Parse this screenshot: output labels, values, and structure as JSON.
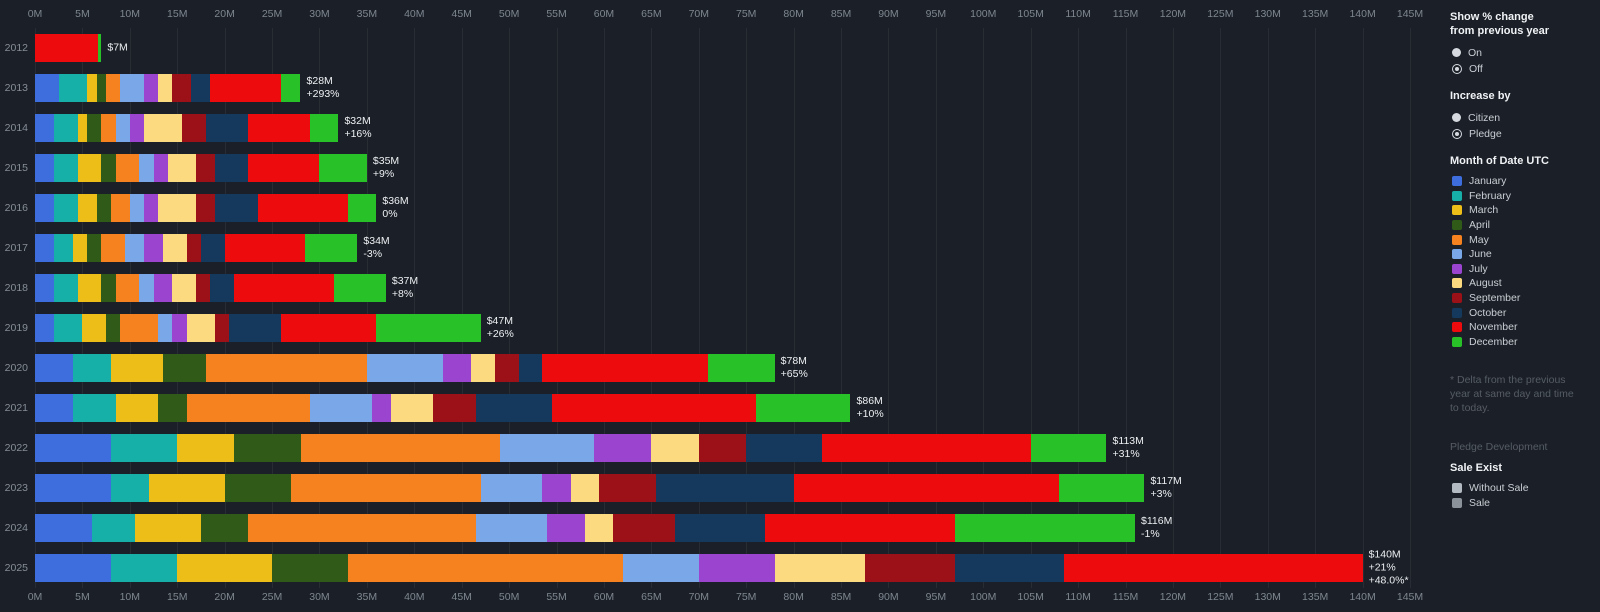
{
  "colors": {
    "background": "#1b2028",
    "grid": "rgba(255,255,255,0.06)",
    "axis_text": "#7e868f",
    "year_text": "#868d96",
    "bar_label_text": "#edeff2"
  },
  "chart_data": {
    "type": "bar",
    "orientation": "horizontal_stacked",
    "title": "",
    "xlabel": "",
    "ylabel": "",
    "x_axis": {
      "min": 0,
      "max": 145,
      "step": 5,
      "suffix": "M",
      "shown": "top_and_bottom"
    },
    "grid": "on",
    "legend_position": "right",
    "months": [
      {
        "name": "January",
        "color": "#3e6dde"
      },
      {
        "name": "February",
        "color": "#17b0a8"
      },
      {
        "name": "March",
        "color": "#edbd18"
      },
      {
        "name": "April",
        "color": "#2f5a17"
      },
      {
        "name": "May",
        "color": "#f6821f"
      },
      {
        "name": "June",
        "color": "#79a7e8"
      },
      {
        "name": "July",
        "color": "#9b44cf"
      },
      {
        "name": "August",
        "color": "#fbda80"
      },
      {
        "name": "September",
        "color": "#9c1117"
      },
      {
        "name": "October",
        "color": "#14395c"
      },
      {
        "name": "November",
        "color": "#ee0b0e"
      },
      {
        "name": "December",
        "color": "#29c128"
      }
    ],
    "years": [
      {
        "year": "2012",
        "total": 7,
        "labels": [
          "$7M"
        ],
        "values": [
          0,
          0,
          0,
          0,
          0,
          0,
          0,
          0,
          0,
          0,
          6.6,
          0.4
        ]
      },
      {
        "year": "2013",
        "total": 28,
        "labels": [
          "$28M",
          "+293%"
        ],
        "values": [
          2.5,
          3,
          1,
          1,
          1.5,
          2.5,
          1.5,
          1.5,
          2,
          2,
          7.5,
          2
        ]
      },
      {
        "year": "2014",
        "total": 32,
        "labels": [
          "$32M",
          "+16%"
        ],
        "values": [
          2,
          2.5,
          1,
          1.5,
          1.5,
          1.5,
          1.5,
          4,
          2.5,
          4.5,
          6.5,
          3
        ]
      },
      {
        "year": "2015",
        "total": 35,
        "labels": [
          "$35M",
          "+9%"
        ],
        "values": [
          2,
          2.5,
          2.5,
          1.5,
          2.5,
          1.5,
          1.5,
          3,
          2,
          3.5,
          7.5,
          5
        ]
      },
      {
        "year": "2016",
        "total": 36,
        "labels": [
          "$36M",
          "0%"
        ],
        "values": [
          2,
          2.5,
          2,
          1.5,
          2,
          1.5,
          1.5,
          4,
          2,
          4.5,
          9.5,
          3
        ]
      },
      {
        "year": "2017",
        "total": 34,
        "labels": [
          "$34M",
          "-3%"
        ],
        "values": [
          2,
          2,
          1.5,
          1.5,
          2.5,
          2,
          2,
          2.5,
          1.5,
          2.5,
          8.5,
          5.5
        ]
      },
      {
        "year": "2018",
        "total": 37,
        "labels": [
          "$37M",
          "+8%"
        ],
        "values": [
          2,
          2.5,
          2.5,
          1.5,
          2.5,
          1.5,
          2,
          2.5,
          1.5,
          2.5,
          10.5,
          5.5
        ]
      },
      {
        "year": "2019",
        "total": 47,
        "labels": [
          "$47M",
          "+26%"
        ],
        "values": [
          2,
          3,
          2.5,
          1.5,
          4,
          1.5,
          1.5,
          3,
          1.5,
          5.5,
          10,
          11
        ]
      },
      {
        "year": "2020",
        "total": 78,
        "labels": [
          "$78M",
          "+65%"
        ],
        "values": [
          4,
          4,
          5.5,
          4.5,
          17,
          8,
          3,
          2.5,
          2.5,
          2.5,
          17.5,
          7
        ]
      },
      {
        "year": "2021",
        "total": 86,
        "labels": [
          "$86M",
          "+10%"
        ],
        "values": [
          4,
          4.5,
          4.5,
          3,
          13,
          6.5,
          2,
          4.5,
          4.5,
          8,
          21.5,
          10
        ]
      },
      {
        "year": "2022",
        "total": 113,
        "labels": [
          "$113M",
          "+31%"
        ],
        "values": [
          8,
          7,
          6,
          7,
          21,
          10,
          6,
          5,
          5,
          8,
          22,
          8
        ]
      },
      {
        "year": "2023",
        "total": 117,
        "labels": [
          "$117M",
          "+3%"
        ],
        "values": [
          8,
          4,
          8,
          7,
          20,
          6.5,
          3,
          3,
          6,
          14.5,
          28,
          9
        ]
      },
      {
        "year": "2024",
        "total": 116,
        "labels": [
          "$116M",
          "-1%"
        ],
        "values": [
          6,
          4.5,
          7,
          5,
          24,
          7.5,
          4,
          3,
          6.5,
          9.5,
          20,
          19
        ]
      },
      {
        "year": "2025",
        "total": 140,
        "labels": [
          "$140M",
          "+21%",
          "+48.0%*"
        ],
        "values": [
          8,
          7,
          10,
          8,
          29,
          8,
          8,
          9.5,
          9.5,
          11.5,
          31.5,
          0
        ]
      }
    ]
  },
  "sidebar": {
    "show_pct": {
      "title_line1": "Show % change",
      "title_line2": "from previous year",
      "options": [
        {
          "label": "On",
          "selected": false
        },
        {
          "label": "Off",
          "selected": true
        }
      ]
    },
    "increase_by": {
      "title": "Increase by",
      "options": [
        {
          "label": "Citizen",
          "selected": false
        },
        {
          "label": "Pledge",
          "selected": true
        }
      ]
    },
    "month_legend_title": "Month of Date UTC",
    "note": "* Delta from the previous year at same day and time to today.",
    "pledge_dev_label": "Pledge Development",
    "sale_exist": {
      "title": "Sale Exist",
      "items": [
        {
          "label": "Without Sale",
          "color": "#b4bac1"
        },
        {
          "label": "Sale",
          "color": "#8b929a"
        }
      ]
    }
  }
}
